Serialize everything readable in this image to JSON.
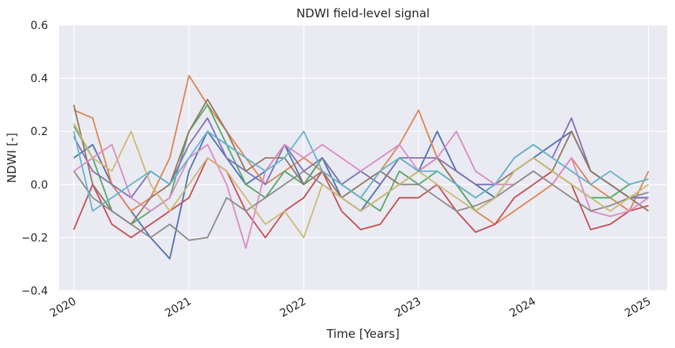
{
  "chart_data": {
    "type": "line",
    "title": "NDWI field-level signal",
    "xlabel": "Time [Years]",
    "ylabel": "NDWI [-]",
    "xlim": [
      "2019-11-15",
      "2025-03-01"
    ],
    "ylim": [
      -0.4,
      0.6
    ],
    "xticks": [
      "2020",
      "2021",
      "2022",
      "2023",
      "2024",
      "2025"
    ],
    "yticks": [
      "−0.4",
      "−0.2",
      "0.0",
      "0.2",
      "0.4",
      "0.6"
    ],
    "grid": true,
    "background": "#eaeaf2",
    "colors": [
      "#4c72b0",
      "#dd8452",
      "#55a868",
      "#c44e52",
      "#8172b3",
      "#937860",
      "#da8bc3",
      "#8c8c8c",
      "#ccb974",
      "#64b5cd"
    ],
    "series": [
      {
        "x": [
          "2020-01-01",
          "2020-03-01",
          "2020-05-01",
          "2020-07-01",
          "2020-09-01",
          "2020-11-01",
          "2021-01-01",
          "2021-03-01",
          "2021-05-01",
          "2021-07-01",
          "2021-09-01",
          "2021-11-01",
          "2022-01-01",
          "2022-03-01",
          "2022-05-01",
          "2022-07-01",
          "2022-09-01",
          "2022-11-01",
          "2023-01-01",
          "2023-03-01",
          "2023-05-01",
          "2023-07-01",
          "2023-09-01",
          "2023-11-01",
          "2024-01-01",
          "2024-03-01",
          "2024-05-01",
          "2024-07-01",
          "2024-09-01",
          "2024-11-01",
          "2025-01-01"
        ],
        "values": [
          0.1,
          0.15,
          0.0,
          -0.1,
          -0.2,
          -0.28,
          0.05,
          0.2,
          0.1,
          0.0,
          0.05,
          0.15,
          0.0,
          0.1,
          -0.05,
          -0.1,
          0.0,
          0.1,
          0.05,
          0.2,
          0.05,
          0.0,
          -0.05,
          0.05,
          0.1,
          0.15,
          0.2,
          0.05,
          0.0,
          -0.05,
          -0.05
        ]
      },
      {
        "x": [
          "2020-01-01",
          "2020-03-01",
          "2020-05-01",
          "2020-07-01",
          "2020-09-01",
          "2020-11-01",
          "2021-01-01",
          "2021-03-01",
          "2021-05-01",
          "2021-07-01",
          "2021-09-01",
          "2021-11-01",
          "2022-01-01",
          "2022-03-01",
          "2022-05-01",
          "2022-07-01",
          "2022-09-01",
          "2022-11-01",
          "2023-01-01",
          "2023-03-01",
          "2023-05-01",
          "2023-07-01",
          "2023-09-01",
          "2023-11-01",
          "2024-01-01",
          "2024-03-01",
          "2024-05-01",
          "2024-07-01",
          "2024-09-01",
          "2024-11-01",
          "2025-01-01"
        ],
        "values": [
          0.28,
          0.25,
          0.0,
          -0.1,
          -0.05,
          0.1,
          0.41,
          0.3,
          0.2,
          0.1,
          0.0,
          0.05,
          0.1,
          0.05,
          0.0,
          -0.05,
          0.05,
          0.15,
          0.28,
          0.1,
          0.0,
          -0.1,
          -0.15,
          -0.1,
          -0.05,
          0.0,
          0.1,
          0.0,
          -0.05,
          -0.1,
          0.05
        ]
      },
      {
        "x": [
          "2020-01-01",
          "2020-03-01",
          "2020-05-01",
          "2020-07-01",
          "2020-09-01",
          "2020-11-01",
          "2021-01-01",
          "2021-03-01",
          "2021-05-01",
          "2021-07-01",
          "2021-09-01",
          "2021-11-01",
          "2022-01-01",
          "2022-03-01",
          "2022-05-01",
          "2022-07-01",
          "2022-09-01",
          "2022-11-01",
          "2023-01-01",
          "2023-03-01",
          "2023-05-01",
          "2023-07-01",
          "2023-09-01",
          "2023-11-01",
          "2024-01-01",
          "2024-03-01",
          "2024-05-01",
          "2024-07-01",
          "2024-09-01",
          "2024-11-01",
          "2025-01-01"
        ],
        "values": [
          0.22,
          0.1,
          -0.1,
          -0.15,
          -0.1,
          -0.05,
          0.2,
          0.3,
          0.15,
          0.0,
          -0.05,
          0.05,
          0.0,
          0.1,
          0.0,
          -0.05,
          -0.1,
          0.05,
          0.0,
          0.05,
          0.0,
          -0.1,
          -0.05,
          0.05,
          0.1,
          0.05,
          0.0,
          -0.05,
          -0.05,
          0.0,
          0.02
        ]
      },
      {
        "x": [
          "2020-01-01",
          "2020-03-01",
          "2020-05-01",
          "2020-07-01",
          "2020-09-01",
          "2020-11-01",
          "2021-01-01",
          "2021-03-01",
          "2021-05-01",
          "2021-07-01",
          "2021-09-01",
          "2021-11-01",
          "2022-01-01",
          "2022-03-01",
          "2022-05-01",
          "2022-07-01",
          "2022-09-01",
          "2022-11-01",
          "2023-01-01",
          "2023-03-01",
          "2023-05-01",
          "2023-07-01",
          "2023-09-01",
          "2023-11-01",
          "2024-01-01",
          "2024-03-01",
          "2024-05-01",
          "2024-07-01",
          "2024-09-01",
          "2024-11-01",
          "2025-01-01"
        ],
        "values": [
          -0.17,
          0.0,
          -0.15,
          -0.2,
          -0.15,
          -0.1,
          -0.05,
          0.1,
          0.05,
          -0.1,
          -0.2,
          -0.1,
          -0.05,
          0.05,
          -0.1,
          -0.17,
          -0.15,
          -0.05,
          -0.05,
          0.0,
          -0.1,
          -0.18,
          -0.15,
          -0.05,
          0.0,
          0.05,
          0.0,
          -0.17,
          -0.15,
          -0.1,
          -0.08
        ]
      },
      {
        "x": [
          "2020-01-01",
          "2020-03-01",
          "2020-05-01",
          "2020-07-01",
          "2020-09-01",
          "2020-11-01",
          "2021-01-01",
          "2021-03-01",
          "2021-05-01",
          "2021-07-01",
          "2021-09-01",
          "2021-11-01",
          "2022-01-01",
          "2022-03-01",
          "2022-05-01",
          "2022-07-01",
          "2022-09-01",
          "2022-11-01",
          "2023-01-01",
          "2023-03-01",
          "2023-05-01",
          "2023-07-01",
          "2023-09-01",
          "2023-11-01",
          "2024-01-01",
          "2024-03-01",
          "2024-05-01",
          "2024-07-01",
          "2024-09-01",
          "2024-11-01",
          "2025-01-01"
        ],
        "values": [
          0.18,
          0.05,
          0.0,
          -0.05,
          0.05,
          0.0,
          0.15,
          0.25,
          0.1,
          0.05,
          0.0,
          0.15,
          0.05,
          0.1,
          0.0,
          0.05,
          0.0,
          0.1,
          0.1,
          0.1,
          0.05,
          0.0,
          0.0,
          0.1,
          0.15,
          0.1,
          0.25,
          0.05,
          0.0,
          -0.05,
          -0.05
        ]
      },
      {
        "x": [
          "2020-01-01",
          "2020-03-01",
          "2020-05-01",
          "2020-07-01",
          "2020-09-01",
          "2020-11-01",
          "2021-01-01",
          "2021-03-01",
          "2021-05-01",
          "2021-07-01",
          "2021-09-01",
          "2021-11-01",
          "2022-01-01",
          "2022-03-01",
          "2022-05-01",
          "2022-07-01",
          "2022-09-01",
          "2022-11-01",
          "2023-01-01",
          "2023-03-01",
          "2023-05-01",
          "2023-07-01",
          "2023-09-01",
          "2023-11-01",
          "2024-01-01",
          "2024-03-01",
          "2024-05-01",
          "2024-07-01",
          "2024-09-01",
          "2024-11-01",
          "2025-01-01"
        ],
        "values": [
          0.3,
          0.0,
          -0.1,
          -0.15,
          -0.05,
          0.0,
          0.2,
          0.32,
          0.2,
          0.05,
          0.1,
          0.1,
          0.0,
          0.05,
          -0.05,
          0.0,
          0.05,
          0.0,
          0.05,
          0.1,
          0.0,
          -0.05,
          0.0,
          0.05,
          0.1,
          0.05,
          0.2,
          0.05,
          0.0,
          -0.05,
          -0.1
        ]
      },
      {
        "x": [
          "2020-01-01",
          "2020-03-01",
          "2020-05-01",
          "2020-07-01",
          "2020-09-01",
          "2020-11-01",
          "2021-01-01",
          "2021-03-01",
          "2021-05-01",
          "2021-07-01",
          "2021-09-01",
          "2021-11-01",
          "2022-01-01",
          "2022-03-01",
          "2022-05-01",
          "2022-07-01",
          "2022-09-01",
          "2022-11-01",
          "2023-01-01",
          "2023-03-01",
          "2023-05-01",
          "2023-07-01",
          "2023-09-01",
          "2023-11-01",
          "2024-01-01",
          "2024-03-01",
          "2024-05-01",
          "2024-07-01",
          "2024-09-01",
          "2024-11-01",
          "2025-01-01"
        ],
        "values": [
          0.05,
          0.1,
          0.15,
          -0.05,
          -0.1,
          -0.05,
          0.1,
          0.15,
          0.0,
          -0.24,
          0.05,
          0.15,
          0.1,
          0.15,
          0.1,
          0.05,
          0.1,
          0.15,
          0.05,
          0.1,
          0.2,
          0.05,
          0.0,
          0.0,
          0.05,
          0.0,
          0.1,
          -0.1,
          -0.12,
          -0.1,
          -0.05
        ]
      },
      {
        "x": [
          "2020-01-01",
          "2020-03-01",
          "2020-05-01",
          "2020-07-01",
          "2020-09-01",
          "2020-11-01",
          "2021-01-01",
          "2021-03-01",
          "2021-05-01",
          "2021-07-01",
          "2021-09-01",
          "2021-11-01",
          "2022-01-01",
          "2022-03-01",
          "2022-05-01",
          "2022-07-01",
          "2022-09-01",
          "2022-11-01",
          "2023-01-01",
          "2023-03-01",
          "2023-05-01",
          "2023-07-01",
          "2023-09-01",
          "2023-11-01",
          "2024-01-01",
          "2024-03-01",
          "2024-05-01",
          "2024-07-01",
          "2024-09-01",
          "2024-11-01",
          "2025-01-01"
        ],
        "values": [
          0.05,
          -0.05,
          -0.1,
          -0.15,
          -0.2,
          -0.15,
          -0.21,
          -0.2,
          -0.05,
          -0.1,
          -0.05,
          0.0,
          0.05,
          0.0,
          -0.05,
          -0.1,
          -0.05,
          0.0,
          0.0,
          -0.05,
          -0.1,
          -0.08,
          -0.05,
          0.0,
          0.05,
          0.0,
          -0.05,
          -0.1,
          -0.08,
          -0.05,
          -0.03
        ]
      },
      {
        "x": [
          "2020-01-01",
          "2020-03-01",
          "2020-05-01",
          "2020-07-01",
          "2020-09-01",
          "2020-11-01",
          "2021-01-01",
          "2021-03-01",
          "2021-05-01",
          "2021-07-01",
          "2021-09-01",
          "2021-11-01",
          "2022-01-01",
          "2022-03-01",
          "2022-05-01",
          "2022-07-01",
          "2022-09-01",
          "2022-11-01",
          "2023-01-01",
          "2023-03-01",
          "2023-05-01",
          "2023-07-01",
          "2023-09-01",
          "2023-11-01",
          "2024-01-01",
          "2024-03-01",
          "2024-05-01",
          "2024-07-01",
          "2024-09-01",
          "2024-11-01",
          "2025-01-01"
        ],
        "values": [
          0.23,
          0.1,
          0.05,
          0.2,
          0.0,
          -0.1,
          0.0,
          0.1,
          0.05,
          -0.05,
          -0.15,
          -0.1,
          -0.2,
          0.0,
          -0.05,
          -0.1,
          -0.05,
          0.0,
          0.05,
          0.0,
          -0.05,
          -0.1,
          -0.05,
          0.05,
          0.1,
          0.05,
          0.0,
          -0.05,
          -0.1,
          -0.05,
          0.0
        ]
      },
      {
        "x": [
          "2020-01-01",
          "2020-03-01",
          "2020-05-01",
          "2020-07-01",
          "2020-09-01",
          "2020-11-01",
          "2021-01-01",
          "2021-03-01",
          "2021-05-01",
          "2021-07-01",
          "2021-09-01",
          "2021-11-01",
          "2022-01-01",
          "2022-03-01",
          "2022-05-01",
          "2022-07-01",
          "2022-09-01",
          "2022-11-01",
          "2023-01-01",
          "2023-03-01",
          "2023-05-01",
          "2023-07-01",
          "2023-09-01",
          "2023-11-01",
          "2024-01-01",
          "2024-03-01",
          "2024-05-01",
          "2024-07-01",
          "2024-09-01",
          "2024-11-01",
          "2025-01-01"
        ],
        "values": [
          0.2,
          -0.1,
          -0.05,
          0.0,
          0.05,
          0.0,
          0.1,
          0.2,
          0.15,
          0.1,
          0.05,
          0.1,
          0.2,
          0.05,
          0.0,
          -0.05,
          0.05,
          0.1,
          0.05,
          0.05,
          0.0,
          -0.05,
          0.0,
          0.1,
          0.15,
          0.1,
          0.05,
          0.0,
          0.05,
          0.0,
          0.02
        ]
      }
    ]
  }
}
